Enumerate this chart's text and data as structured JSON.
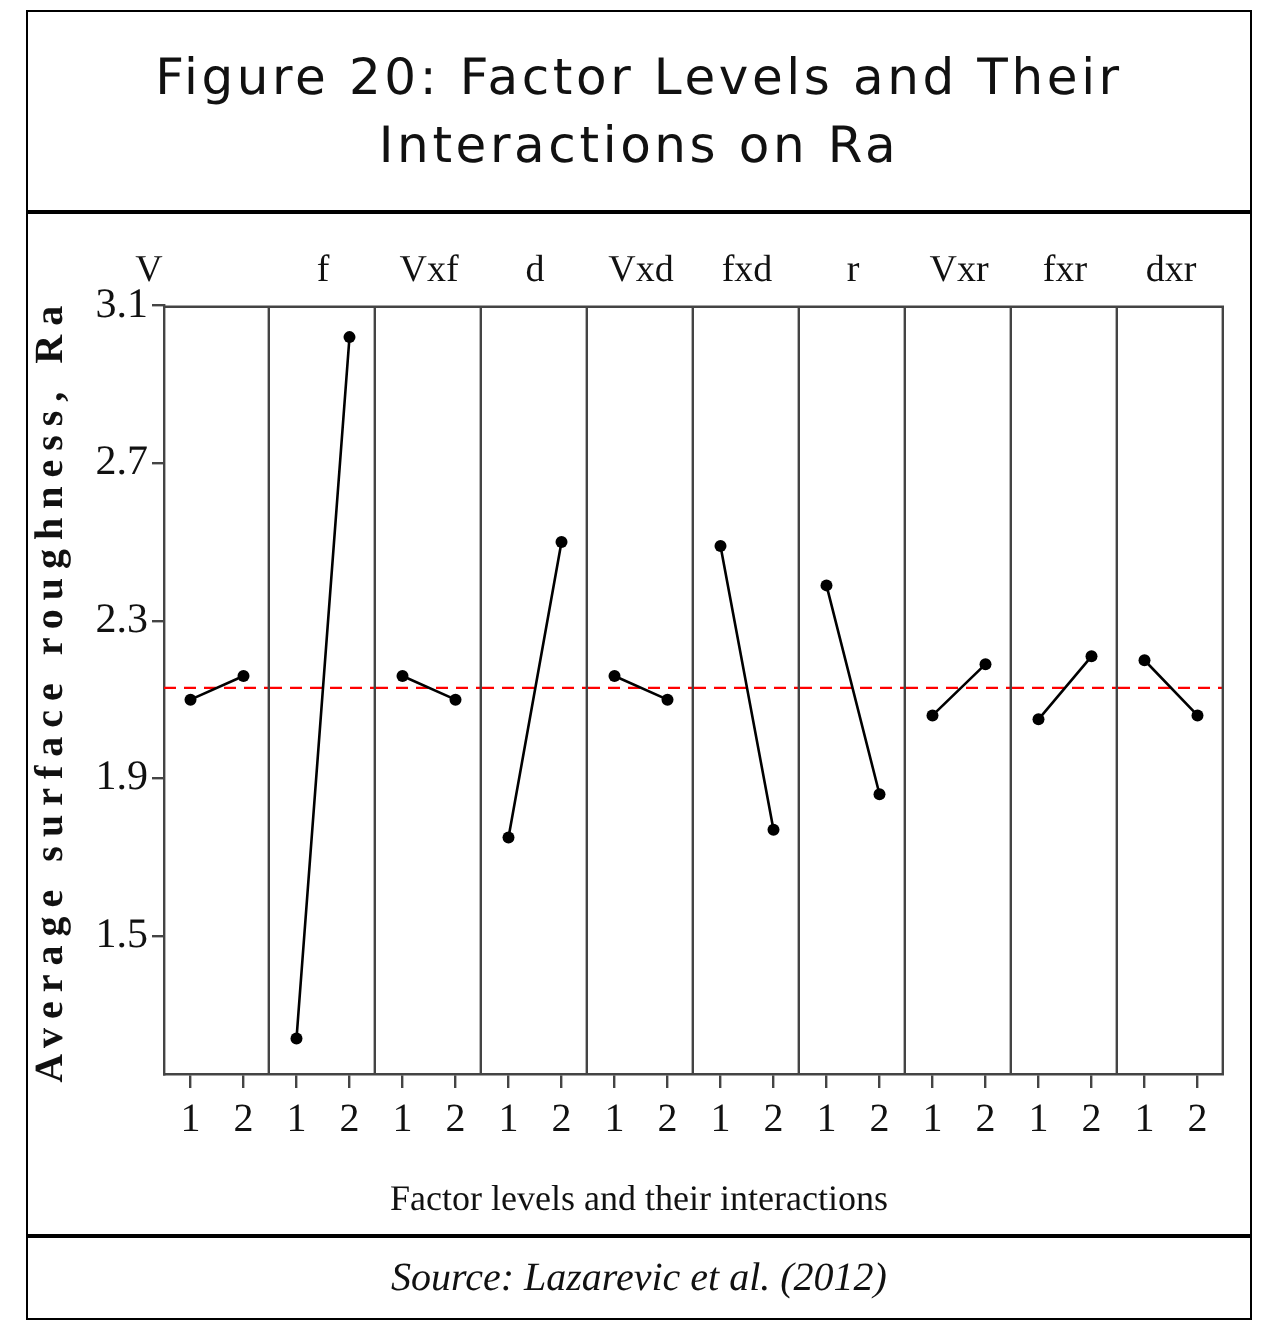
{
  "chart_data": [
    {
      "type": "other",
      "title": "Figure 20: Factor Levels and Their Interactions on Ra",
      "xlabel": "Factor levels and their interactions",
      "annotations": [
        "Source: Lazarevic et al. (2012)"
      ]
    },
    {
      "type": "line",
      "title": "V",
      "ylabel": "Average surface roughness, Ra",
      "categories": [
        "1",
        "2"
      ],
      "values": [
        2.1,
        2.16
      ],
      "color": "#000000",
      "ylim": [
        1.15,
        3.1
      ],
      "yticks": [
        1.5,
        1.9,
        2.3,
        2.7,
        3.1
      ],
      "ref_lines": [
        {
          "axis": "y",
          "value": 2.13,
          "color": "#ff0000",
          "line_style": "dashed"
        }
      ],
      "marker": "circle",
      "line_style": "solid"
    },
    {
      "type": "line",
      "title": "f",
      "categories": [
        "1",
        "2"
      ],
      "values": [
        1.24,
        3.02
      ],
      "color": "#000000",
      "ylim": [
        1.15,
        3.1
      ],
      "tick_labels": "x",
      "ref_lines": [
        {
          "axis": "y",
          "value": 2.13,
          "color": "#ff0000",
          "line_style": "dashed"
        }
      ],
      "marker": "circle",
      "line_style": "solid"
    },
    {
      "type": "line",
      "title": "Vxf",
      "categories": [
        "1",
        "2"
      ],
      "values": [
        2.16,
        2.1
      ],
      "color": "#000000",
      "ylim": [
        1.15,
        3.1
      ],
      "tick_labels": "x",
      "ref_lines": [
        {
          "axis": "y",
          "value": 2.13,
          "color": "#ff0000",
          "line_style": "dashed"
        }
      ],
      "marker": "circle",
      "line_style": "solid"
    },
    {
      "type": "line",
      "title": "d",
      "categories": [
        "1",
        "2"
      ],
      "values": [
        1.75,
        2.5
      ],
      "color": "#000000",
      "ylim": [
        1.15,
        3.1
      ],
      "tick_labels": "x",
      "ref_lines": [
        {
          "axis": "y",
          "value": 2.13,
          "color": "#ff0000",
          "line_style": "dashed"
        }
      ],
      "marker": "circle",
      "line_style": "solid"
    },
    {
      "type": "line",
      "title": "Vxd",
      "categories": [
        "1",
        "2"
      ],
      "values": [
        2.16,
        2.1
      ],
      "color": "#000000",
      "ylim": [
        1.15,
        3.1
      ],
      "tick_labels": "x",
      "ref_lines": [
        {
          "axis": "y",
          "value": 2.13,
          "color": "#ff0000",
          "line_style": "dashed"
        }
      ],
      "marker": "circle",
      "line_style": "solid"
    },
    {
      "type": "line",
      "title": "fxd",
      "categories": [
        "1",
        "2"
      ],
      "values": [
        2.49,
        1.77
      ],
      "color": "#000000",
      "ylim": [
        1.15,
        3.1
      ],
      "tick_labels": "x",
      "ref_lines": [
        {
          "axis": "y",
          "value": 2.13,
          "color": "#ff0000",
          "line_style": "dashed"
        }
      ],
      "marker": "circle",
      "line_style": "solid"
    },
    {
      "type": "line",
      "title": "r",
      "categories": [
        "1",
        "2"
      ],
      "values": [
        2.39,
        1.86
      ],
      "color": "#000000",
      "ylim": [
        1.15,
        3.1
      ],
      "tick_labels": "x",
      "ref_lines": [
        {
          "axis": "y",
          "value": 2.13,
          "color": "#ff0000",
          "line_style": "dashed"
        }
      ],
      "marker": "circle",
      "line_style": "solid"
    },
    {
      "type": "line",
      "title": "Vxr",
      "categories": [
        "1",
        "2"
      ],
      "values": [
        2.06,
        2.19
      ],
      "color": "#000000",
      "ylim": [
        1.15,
        3.1
      ],
      "tick_labels": "x",
      "ref_lines": [
        {
          "axis": "y",
          "value": 2.13,
          "color": "#ff0000",
          "line_style": "dashed"
        }
      ],
      "marker": "circle",
      "line_style": "solid"
    },
    {
      "type": "line",
      "title": "fxr",
      "categories": [
        "1",
        "2"
      ],
      "values": [
        2.05,
        2.21
      ],
      "color": "#000000",
      "ylim": [
        1.15,
        3.1
      ],
      "tick_labels": "x",
      "ref_lines": [
        {
          "axis": "y",
          "value": 2.13,
          "color": "#ff0000",
          "line_style": "dashed"
        }
      ],
      "marker": "circle",
      "line_style": "solid"
    },
    {
      "type": "line",
      "title": "dxr",
      "categories": [
        "1",
        "2"
      ],
      "values": [
        2.2,
        2.06
      ],
      "color": "#000000",
      "ylim": [
        1.15,
        3.1
      ],
      "tick_labels": "x",
      "ref_lines": [
        {
          "axis": "y",
          "value": 2.13,
          "color": "#ff0000",
          "line_style": "dashed"
        }
      ],
      "marker": "circle",
      "line_style": "solid"
    }
  ]
}
